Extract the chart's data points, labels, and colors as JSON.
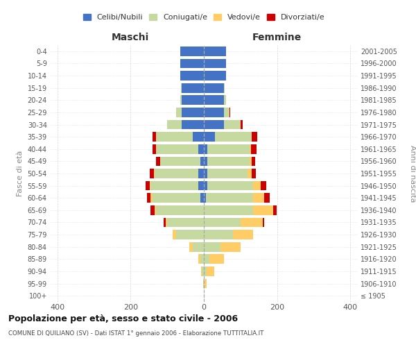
{
  "age_groups": [
    "100+",
    "95-99",
    "90-94",
    "85-89",
    "80-84",
    "75-79",
    "70-74",
    "65-69",
    "60-64",
    "55-59",
    "50-54",
    "45-49",
    "40-44",
    "35-39",
    "30-34",
    "25-29",
    "20-24",
    "15-19",
    "10-14",
    "5-9",
    "0-4"
  ],
  "birth_years": [
    "≤ 1905",
    "1906-1910",
    "1911-1915",
    "1916-1920",
    "1921-1925",
    "1926-1930",
    "1931-1935",
    "1936-1940",
    "1941-1945",
    "1946-1950",
    "1951-1955",
    "1956-1960",
    "1961-1965",
    "1966-1970",
    "1971-1975",
    "1976-1980",
    "1981-1985",
    "1986-1990",
    "1991-1995",
    "1996-2000",
    "2001-2005"
  ],
  "male": {
    "celibe": [
      0,
      0,
      0,
      0,
      0,
      0,
      0,
      0,
      10,
      15,
      15,
      10,
      15,
      30,
      60,
      60,
      60,
      60,
      65,
      65,
      65
    ],
    "coniugato": [
      0,
      2,
      5,
      10,
      30,
      75,
      100,
      130,
      130,
      130,
      120,
      110,
      115,
      100,
      40,
      15,
      5,
      2,
      0,
      0,
      0
    ],
    "vedovo": [
      0,
      0,
      2,
      5,
      10,
      10,
      5,
      5,
      5,
      3,
      2,
      0,
      0,
      0,
      0,
      0,
      0,
      0,
      0,
      0,
      0
    ],
    "divorziato": [
      0,
      0,
      0,
      0,
      0,
      0,
      5,
      10,
      10,
      10,
      10,
      10,
      10,
      10,
      0,
      0,
      0,
      0,
      0,
      0,
      0
    ]
  },
  "female": {
    "nubile": [
      0,
      0,
      0,
      0,
      0,
      0,
      0,
      0,
      5,
      10,
      10,
      10,
      10,
      30,
      55,
      55,
      55,
      55,
      60,
      60,
      60
    ],
    "coniugata": [
      0,
      2,
      8,
      15,
      45,
      80,
      100,
      135,
      130,
      125,
      110,
      115,
      115,
      100,
      45,
      15,
      5,
      2,
      0,
      0,
      0
    ],
    "vedova": [
      0,
      5,
      20,
      40,
      55,
      55,
      60,
      55,
      30,
      20,
      10,
      5,
      3,
      0,
      0,
      0,
      0,
      0,
      0,
      0,
      0
    ],
    "divorziata": [
      0,
      0,
      0,
      0,
      0,
      0,
      5,
      8,
      15,
      15,
      12,
      10,
      15,
      15,
      5,
      2,
      0,
      0,
      0,
      0,
      0
    ]
  },
  "colors": {
    "celibe": "#4472C4",
    "coniugato": "#C5D9A0",
    "vedovo": "#FFCC66",
    "divorziato": "#CC0000"
  },
  "xlim": 420,
  "title": "Popolazione per età, sesso e stato civile - 2006",
  "subtitle": "COMUNE DI QUILIANO (SV) - Dati ISTAT 1° gennaio 2006 - Elaborazione TUTTITALIA.IT",
  "ylabel_left": "Fasce di età",
  "ylabel_right": "Anni di nascita",
  "xlabel_male": "Maschi",
  "xlabel_female": "Femmine",
  "legend_labels": [
    "Celibi/Nubili",
    "Coniugati/e",
    "Vedovi/e",
    "Divorziati/e"
  ],
  "bg_color": "#FFFFFF",
  "grid_color": "#CCCCCC"
}
